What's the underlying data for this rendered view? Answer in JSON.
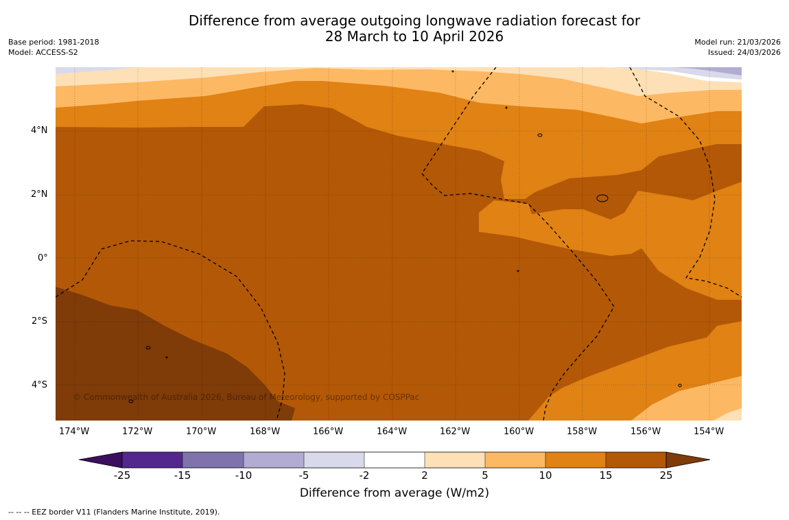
{
  "title_line1": "Difference from average outgoing longwave radiation forecast for",
  "title_line2": "28 March to 10 April 2026",
  "meta_left": {
    "base_period": "Base period: 1981-2018",
    "model": "Model: ACCESS-S2"
  },
  "meta_right": {
    "model_run": "Model run: 21/03/2026",
    "issued": "Issued: 24/03/2026"
  },
  "map": {
    "lon_labels": [
      "174°W",
      "172°W",
      "170°W",
      "168°W",
      "166°W",
      "164°W",
      "162°W",
      "160°W",
      "158°W",
      "156°W",
      "154°W"
    ],
    "lat_labels": [
      "4°N",
      "2°N",
      "0°",
      "2°S",
      "4°S"
    ],
    "copyright": "© Commonwealth of Australia 2026, Bureau of Meteorology, supported by COSPPac"
  },
  "colorbar": {
    "ticks": [
      "-25",
      "-15",
      "-10",
      "-5",
      "-2",
      "2",
      "5",
      "10",
      "15",
      "25"
    ],
    "colors": {
      "lt_m25": "#3b0f5e",
      "m25_m15": "#54278f",
      "m15_m10": "#8073ac",
      "m10_m5": "#b2abd2",
      "m5_m2": "#d8daeb",
      "m2_2": "#ffffff",
      "2_5": "#fee0b6",
      "5_10": "#fdb863",
      "10_15": "#e08214",
      "15_25": "#b35806",
      "gt_25": "#7f3b08"
    },
    "label": "Difference from average (W/m2)"
  },
  "footnote": "--  --  -- EEZ border V11 (Flanders Marine Institute, 2019)."
}
